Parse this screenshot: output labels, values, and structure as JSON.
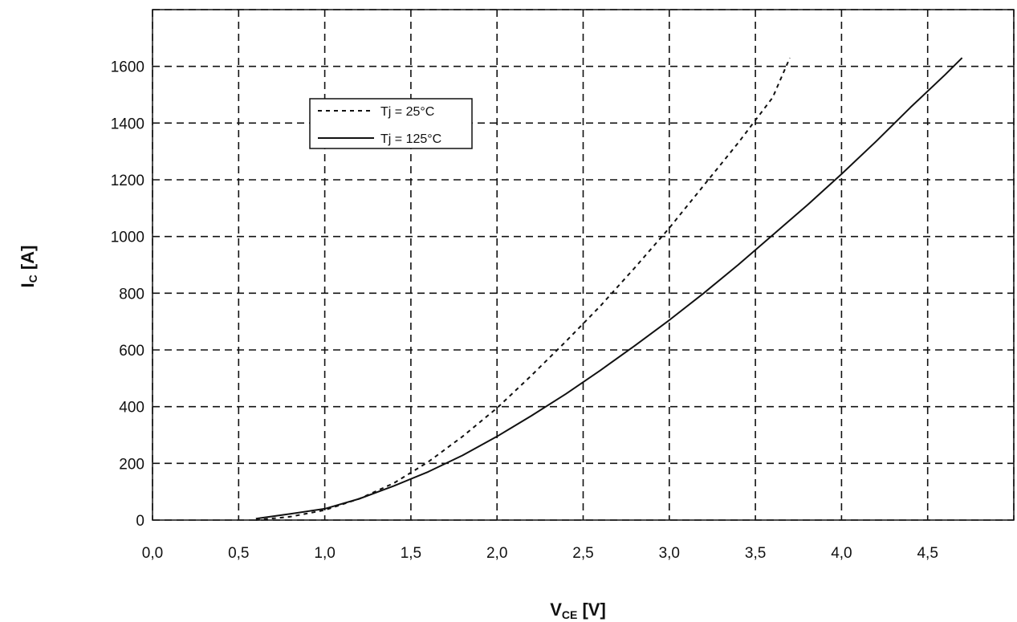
{
  "chart_data": {
    "type": "line",
    "xlabel": {
      "main": "V",
      "sub": "CE",
      "unit": " [V]"
    },
    "ylabel": {
      "main": "I",
      "sub": "C",
      "unit": " [A]"
    },
    "xlim": [
      0,
      5
    ],
    "ylim": [
      0,
      1800
    ],
    "x_ticks": [
      "0,0",
      "0,5",
      "1,0",
      "1,5",
      "2,0",
      "2,5",
      "3,0",
      "3,5",
      "4,0",
      "4,5"
    ],
    "y_ticks": [
      "0",
      "200",
      "400",
      "600",
      "800",
      "1000",
      "1200",
      "1400",
      "1600"
    ],
    "grid": true,
    "legend_position": "top-left",
    "series": [
      {
        "name": "Tj = 25°C",
        "style": "dashed",
        "color": "#111111",
        "x": [
          0.6,
          0.8,
          1.0,
          1.2,
          1.4,
          1.6,
          1.8,
          2.0,
          2.2,
          2.4,
          2.6,
          2.8,
          3.0,
          3.2,
          3.4,
          3.6,
          3.7
        ],
        "y": [
          0,
          12,
          35,
          75,
          130,
          205,
          295,
          395,
          510,
          630,
          755,
          890,
          1030,
          1180,
          1330,
          1490,
          1630
        ]
      },
      {
        "name": "Tj = 125°C",
        "style": "solid",
        "color": "#111111",
        "x": [
          0.6,
          0.8,
          1.0,
          1.2,
          1.4,
          1.6,
          1.8,
          2.0,
          2.2,
          2.4,
          2.6,
          2.8,
          3.0,
          3.2,
          3.4,
          3.6,
          3.8,
          4.0,
          4.2,
          4.4,
          4.6,
          4.7
        ],
        "y": [
          5,
          22,
          40,
          75,
          120,
          170,
          228,
          295,
          368,
          445,
          528,
          615,
          705,
          800,
          900,
          1005,
          1110,
          1220,
          1335,
          1455,
          1570,
          1630
        ]
      }
    ]
  }
}
